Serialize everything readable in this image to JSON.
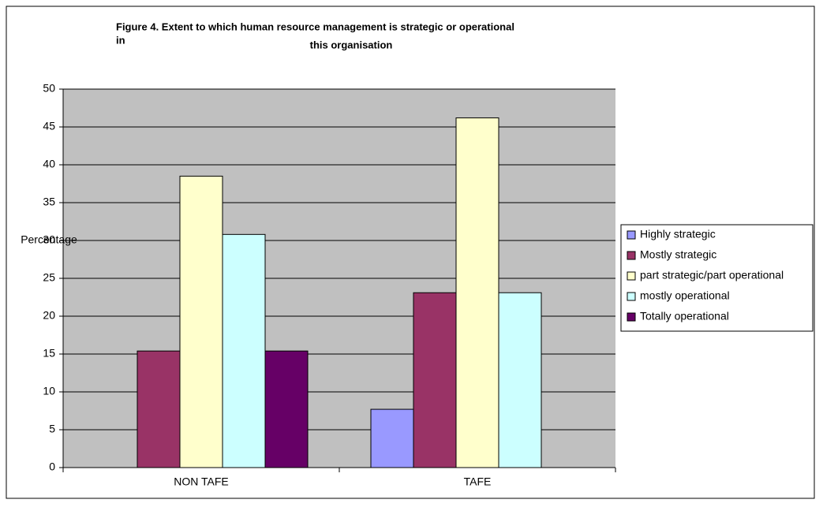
{
  "chart_data": {
    "type": "bar",
    "title": [
      "Figure 4. Extent to which human resource management is strategic or operational",
      "in",
      "this organisation"
    ],
    "y_label": "Percentage",
    "categories": [
      "NON TAFE",
      "TAFE"
    ],
    "series": [
      {
        "name": "Highly strategic",
        "color": "#9999ff",
        "values": [
          0,
          7.7
        ]
      },
      {
        "name": "Mostly strategic",
        "color": "#993366",
        "values": [
          15.4,
          23.1
        ]
      },
      {
        "name": "part strategic/part operational",
        "color": "#ffffcc",
        "values": [
          38.5,
          46.2
        ]
      },
      {
        "name": "mostly operational",
        "color": "#ccffff",
        "values": [
          30.8,
          23.1
        ]
      },
      {
        "name": "Totally operational",
        "color": "#660066",
        "values": [
          15.4,
          0
        ]
      }
    ],
    "ylim": [
      0,
      50
    ],
    "yticks": [
      0,
      5,
      10,
      15,
      20,
      25,
      30,
      35,
      40,
      45,
      50
    ],
    "grid": true,
    "legend": "right"
  }
}
